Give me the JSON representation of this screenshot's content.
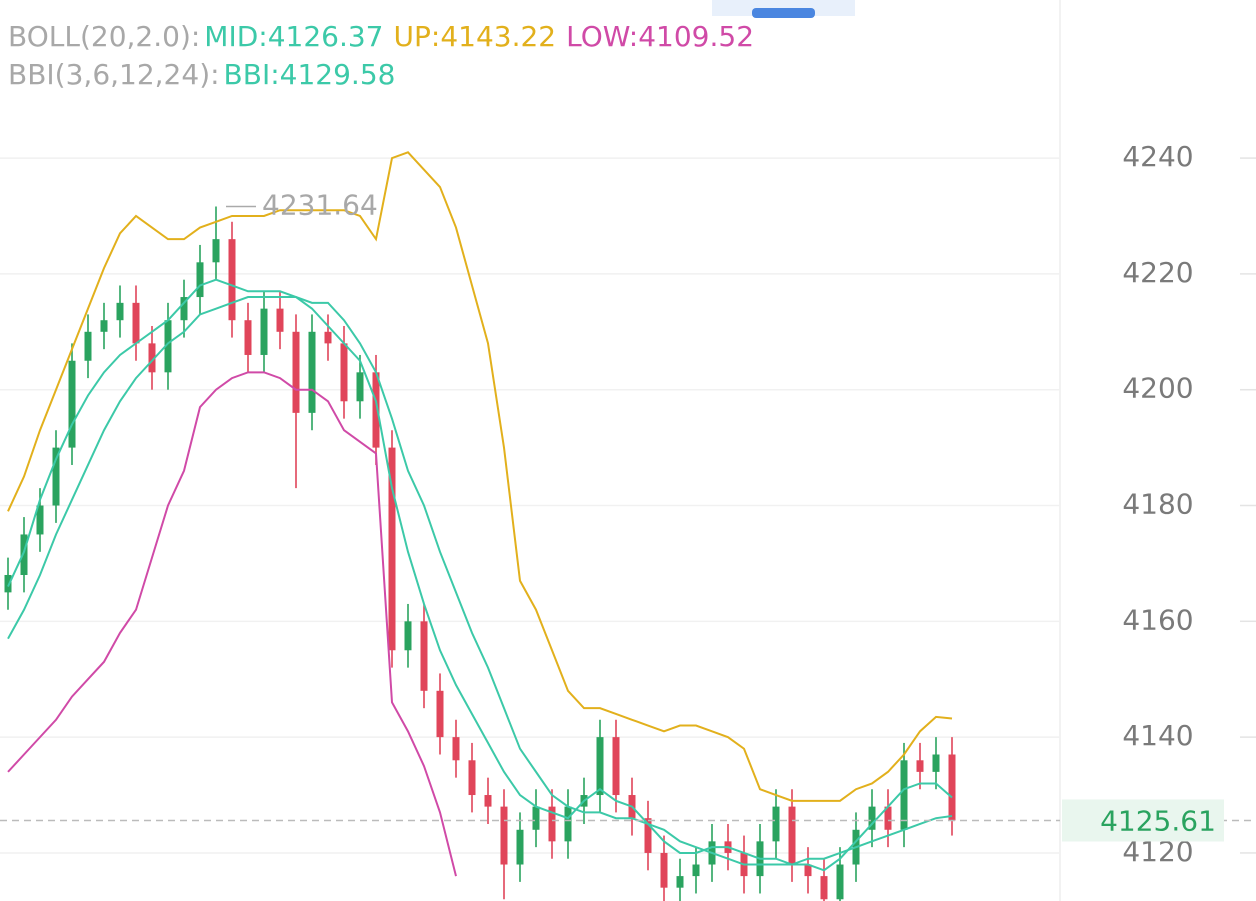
{
  "chart_data": {
    "type": "candlestick",
    "legend_lines": [
      {
        "label": "BOLL(20,2.0):",
        "entries": [
          {
            "text": "MID:4126.37",
            "color": "#3cc9a8"
          },
          {
            "text": "UP:4143.22",
            "color": "#e2b01c"
          },
          {
            "text": "LOW:4109.52",
            "color": "#d04aa7"
          }
        ]
      },
      {
        "label": "BBI(3,6,12,24):",
        "entries": [
          {
            "text": "BBI:4129.58",
            "color": "#3cc9a8"
          }
        ]
      }
    ],
    "up_color": "#2aa35f",
    "down_color": "#e0455a",
    "open": [
      4165,
      4168,
      4175,
      4180,
      4190,
      4205,
      4210,
      4212,
      4215,
      4208,
      4203,
      4212,
      4216,
      4222,
      4226,
      4212,
      4206,
      4214,
      4210,
      4196,
      4210,
      4208,
      4198,
      4203,
      4190,
      4155,
      4160,
      4148,
      4140,
      4136,
      4130,
      4128,
      4118,
      4124,
      4128,
      4122,
      4128,
      4130,
      4140,
      4130,
      4126,
      4120,
      4114,
      4116,
      4118,
      4122,
      4120,
      4116,
      4122,
      4128,
      4118,
      4116,
      4112,
      4118,
      4124,
      4128,
      4124,
      4136,
      4134,
      4137
    ],
    "high": [
      4171,
      4178,
      4183,
      4193,
      4208,
      4213,
      4215,
      4218,
      4218,
      4211,
      4215,
      4219,
      4225,
      4231.64,
      4229,
      4215,
      4217,
      4217,
      4213,
      4213,
      4213,
      4211,
      4206,
      4206,
      4193,
      4163,
      4163,
      4151,
      4143,
      4139,
      4133,
      4131,
      4127,
      4131,
      4131,
      4131,
      4133,
      4143,
      4143,
      4133,
      4129,
      4123,
      4119,
      4121,
      4125,
      4125,
      4123,
      4125,
      4131,
      4131,
      4121,
      4119,
      4121,
      4127,
      4131,
      4131,
      4139,
      4139,
      4140,
      4140
    ],
    "low": [
      4162,
      4165,
      4172,
      4177,
      4187,
      4202,
      4207,
      4209,
      4205,
      4200,
      4200,
      4209,
      4213,
      4219,
      4209,
      4203,
      4203,
      4207,
      4183,
      4193,
      4205,
      4195,
      4195,
      4187,
      4152,
      4152,
      4145,
      4137,
      4133,
      4127,
      4125,
      4112,
      4115,
      4121,
      4119,
      4119,
      4125,
      4127,
      4127,
      4123,
      4117,
      4111,
      4111,
      4113,
      4115,
      4117,
      4113,
      4113,
      4119,
      4115,
      4113,
      4109,
      4109,
      4115,
      4121,
      4121,
      4121,
      4131,
      4131,
      4123
    ],
    "close": [
      4168,
      4175,
      4180,
      4190,
      4205,
      4210,
      4212,
      4215,
      4208,
      4203,
      4212,
      4216,
      4222,
      4226,
      4212,
      4206,
      4214,
      4210,
      4196,
      4210,
      4208,
      4198,
      4203,
      4190,
      4155,
      4160,
      4148,
      4140,
      4136,
      4130,
      4128,
      4118,
      4124,
      4128,
      4122,
      4128,
      4130,
      4140,
      4130,
      4126,
      4120,
      4114,
      4116,
      4118,
      4122,
      4120,
      4116,
      4122,
      4128,
      4118,
      4116,
      4112,
      4118,
      4124,
      4128,
      4124,
      4136,
      4134,
      4137,
      4125.61
    ],
    "series": [
      {
        "name": "UP",
        "color": "#e2b01c",
        "values": [
          4179,
          4185,
          4193,
          4200,
          4207,
          4214,
          4221,
          4227,
          4230,
          4228,
          4226,
          4226,
          4228,
          4229,
          4230,
          4230,
          4230,
          4231,
          4231,
          4231,
          4231,
          4231,
          4230,
          4226,
          4240,
          4241,
          4238,
          4235,
          4228,
          4218,
          4208,
          4190,
          4167,
          4162,
          4155,
          4148,
          4145,
          4145,
          4144,
          4143,
          4142,
          4141,
          4142,
          4142,
          4141,
          4140,
          4138,
          4131,
          4130,
          4129,
          4129,
          4129,
          4129,
          4131,
          4132,
          4134,
          4137,
          4141,
          4143.5,
          4143.22
        ]
      },
      {
        "name": "MID",
        "color": "#3cc9a8",
        "values": [
          4157,
          4162,
          4168,
          4175,
          4181,
          4187,
          4193,
          4198,
          4202,
          4205,
          4208,
          4210,
          4213,
          4214,
          4215,
          4216,
          4216,
          4216,
          4216,
          4215,
          4215,
          4212,
          4208,
          4203,
          4195,
          4186,
          4180,
          4172,
          4165,
          4158,
          4152,
          4145,
          4138,
          4134,
          4130,
          4128,
          4127,
          4127,
          4126,
          4126,
          4125,
          4124,
          4122,
          4121,
          4120,
          4119,
          4118,
          4118,
          4118,
          4118,
          4119,
          4119,
          4120,
          4121,
          4122,
          4123,
          4124,
          4125,
          4126,
          4126.37
        ]
      },
      {
        "name": "LOW",
        "color": "#d04aa7",
        "values": [
          4134,
          4137,
          4140,
          4143,
          4147,
          4150,
          4153,
          4158,
          4162,
          4171,
          4180,
          4186,
          4197,
          4200,
          4202,
          4203,
          4203,
          4202,
          4200,
          4200,
          4198,
          4193,
          4191,
          4189,
          4146,
          4141,
          4135,
          4127,
          4116,
          null,
          null,
          null,
          null,
          null,
          null,
          null,
          null,
          null,
          null,
          null,
          null,
          null,
          null,
          null,
          null,
          null,
          null,
          null,
          null,
          null,
          null,
          null,
          null,
          null,
          null,
          null,
          null,
          null,
          null,
          null
        ]
      },
      {
        "name": "BBI",
        "color": "#3cc9a8",
        "values": [
          4166,
          4172,
          4181,
          4188,
          4194,
          4199,
          4203,
          4206,
          4208,
          4210,
          4212,
          4215,
          4218,
          4219,
          4218,
          4217,
          4217,
          4217,
          4216,
          4214,
          4211,
          4208,
          4205,
          4198,
          4183,
          4172,
          4163,
          4155,
          4149,
          4144,
          4139,
          4134,
          4130,
          4128,
          4127,
          4126,
          4129,
          4131,
          4129,
          4128,
          4125,
          4122,
          4120,
          4120,
          4121,
          4121,
          4120,
          4119,
          4119,
          4118,
          4118,
          4117,
          4119,
          4122,
          4125,
          4128,
          4131,
          4132,
          4132,
          4129.58
        ]
      }
    ],
    "last_price": 4125.61,
    "ylim": [
      4111.7,
      4267.3
    ],
    "yticks": [
      4120,
      4140,
      4160,
      4180,
      4200,
      4220,
      4240
    ],
    "grid": true
  }
}
